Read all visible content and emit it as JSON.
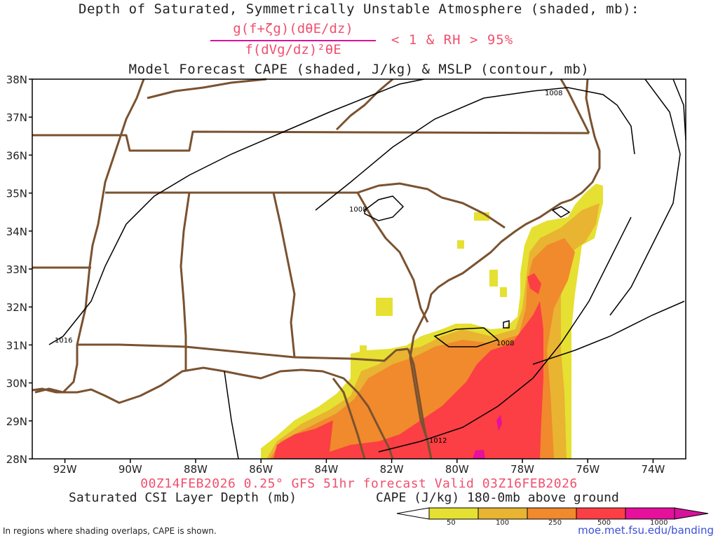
{
  "header": {
    "title_line1": "Depth of Saturated, Symmetrically Unstable Atmosphere (shaded, mb):",
    "fraction_numerator": "g(f+ζg)(dθE/dz)",
    "fraction_denominator": "f(dVg/dz)²θE",
    "condition": "< 1 & RH > 95%",
    "title_line2": "Model Forecast CAPE (shaded, J/kg) & MSLP (contour, mb)"
  },
  "footer": {
    "valid_line": "00Z14FEB2026 0.25° GFS 51hr forecast Valid 03Z16FEB2026",
    "csi_label": "Saturated CSI Layer Depth (mb)",
    "cape_label": "CAPE (J/kg) 180-0mb above ground",
    "footnote": "In regions where shading overlaps, CAPE is shown.",
    "credit": "moe.met.fsu.edu/banding"
  },
  "map": {
    "lat_labels": [
      "38N",
      "37N",
      "36N",
      "35N",
      "34N",
      "33N",
      "32N",
      "31N",
      "30N",
      "29N",
      "28N"
    ],
    "lon_labels": [
      "92W",
      "90W",
      "88W",
      "86W",
      "84W",
      "82W",
      "80W",
      "78W",
      "76W",
      "74W"
    ],
    "lat_range": [
      28,
      38
    ],
    "lon_range": [
      -93,
      -73
    ],
    "isobar_labels": [
      "1008",
      "1008",
      "1008",
      "1012",
      "1016"
    ],
    "colors": {
      "border": "#7a5230",
      "isobar": "#000000",
      "cape_50": "#e6e033",
      "cape_100": "#e8b431",
      "cape_250": "#f08a2c",
      "cape_500": "#fb3f44",
      "cape_1000": "#e6109c"
    }
  },
  "colorbar": {
    "tick_labels": [
      "50",
      "100",
      "250",
      "500",
      "1000"
    ]
  }
}
